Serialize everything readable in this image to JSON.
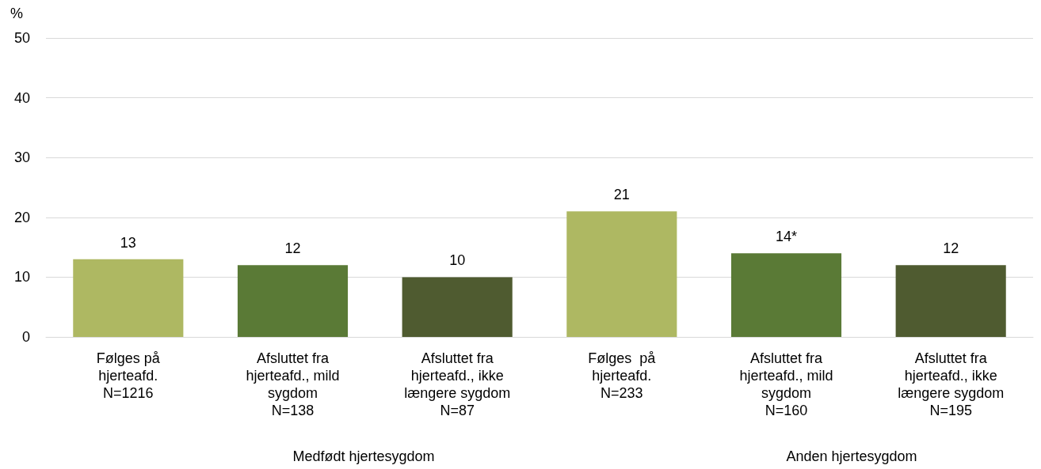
{
  "chart_data": {
    "type": "bar",
    "ylabel": "%",
    "categories": [
      "Følges på\nhjerteafd.\nN=1216",
      "Afsluttet fra\nhjerteafd., mild\nsygdom\nN=138",
      "Afsluttet fra\nhjerteafd., ikke\nlængere sygdom\nN=87",
      "Følges  på\nhjerteafd.\nN=233",
      "Afsluttet fra\nhjerteafd., mild\nsygdom\nN=160",
      "Afsluttet fra\nhjerteafd., ikke\nlængere sygdom\nN=195"
    ],
    "values": [
      13,
      12,
      10,
      21,
      14,
      12
    ],
    "colors": [
      "#aeb862",
      "#5a7a36",
      "#4f5b30",
      "#aeb862",
      "#5a7a36",
      "#4f5b30"
    ],
    "value_labels": [
      "13",
      "12",
      "10",
      "21",
      "14*",
      "12"
    ],
    "ylim": [
      0,
      50
    ],
    "yticks": [
      0,
      10,
      20,
      30,
      40,
      50
    ],
    "grid": "y",
    "annotations": [
      "Medfødt hjertesygdom",
      "Anden hjertesygdom"
    ]
  }
}
